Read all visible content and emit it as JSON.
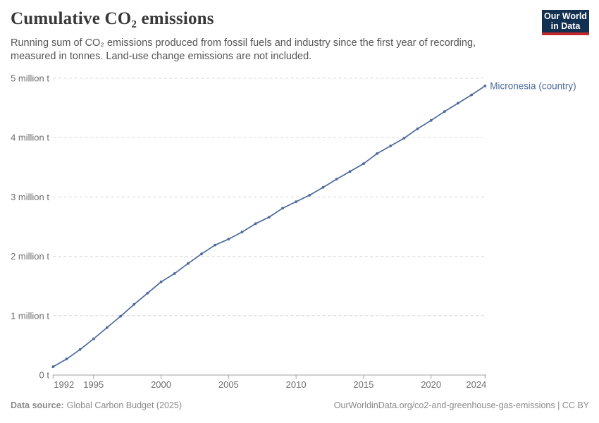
{
  "header": {
    "title": "Cumulative CO₂ emissions",
    "logo": {
      "line1": "Our World",
      "line2": "in Data"
    }
  },
  "subtitle": {
    "full": "Running sum of CO₂ emissions produced from fossil fuels and industry since the first year of recording, measured in tonnes. Land-use change emissions are not included.",
    "lines": [
      "Running sum of CO₂ emissions produced from fossil fuels and industry since the first year of recording,",
      "measured in tonnes. Land-use change emissions are not included."
    ]
  },
  "footer": {
    "source_label": "Data source:",
    "source_value": "Global Carbon Budget (2025)",
    "credit": "OurWorldinData.org/co2-and-greenhouse-gas-emissions | CC BY"
  },
  "colors": {
    "series": "#4c6a9c",
    "grid": "#d8d8d8",
    "axis": "#a1a1a1",
    "axis_text": "#6e6e6e",
    "title_text": "#383838",
    "subtitle_text": "#555555",
    "footer_text": "#8a8a8a",
    "logo_bg": "#12304f",
    "logo_accent": "#c1272d"
  },
  "chart_data": {
    "type": "line",
    "title": "Cumulative CO₂ emissions",
    "unit": "tonnes",
    "grid": "horizontal dashed",
    "legend_position": "line-end-label",
    "xlim": [
      1992,
      2024
    ],
    "ylim": [
      0,
      5000000
    ],
    "x_ticks": [
      1992,
      1995,
      2000,
      2005,
      2010,
      2015,
      2020,
      2024
    ],
    "y_ticks": [
      {
        "value": 0,
        "label": "0 t"
      },
      {
        "value": 1000000,
        "label": "1 million t"
      },
      {
        "value": 2000000,
        "label": "2 million t"
      },
      {
        "value": 3000000,
        "label": "3 million t"
      },
      {
        "value": 4000000,
        "label": "4 million t"
      },
      {
        "value": 5000000,
        "label": "5 million t"
      }
    ],
    "series": [
      {
        "name": "Micronesia (country)",
        "color": "#4c6a9c",
        "x": [
          1992,
          1993,
          1994,
          1995,
          1996,
          1997,
          1998,
          1999,
          2000,
          2001,
          2002,
          2003,
          2004,
          2005,
          2006,
          2007,
          2008,
          2009,
          2010,
          2011,
          2012,
          2013,
          2014,
          2015,
          2016,
          2017,
          2018,
          2019,
          2020,
          2021,
          2022,
          2023,
          2024
        ],
        "values": [
          140000,
          270000,
          430000,
          610000,
          800000,
          990000,
          1190000,
          1380000,
          1570000,
          1710000,
          1880000,
          2040000,
          2190000,
          2290000,
          2410000,
          2550000,
          2660000,
          2810000,
          2920000,
          3030000,
          3160000,
          3300000,
          3430000,
          3560000,
          3730000,
          3860000,
          3990000,
          4150000,
          4290000,
          4440000,
          4580000,
          4720000,
          4870000
        ]
      }
    ]
  }
}
